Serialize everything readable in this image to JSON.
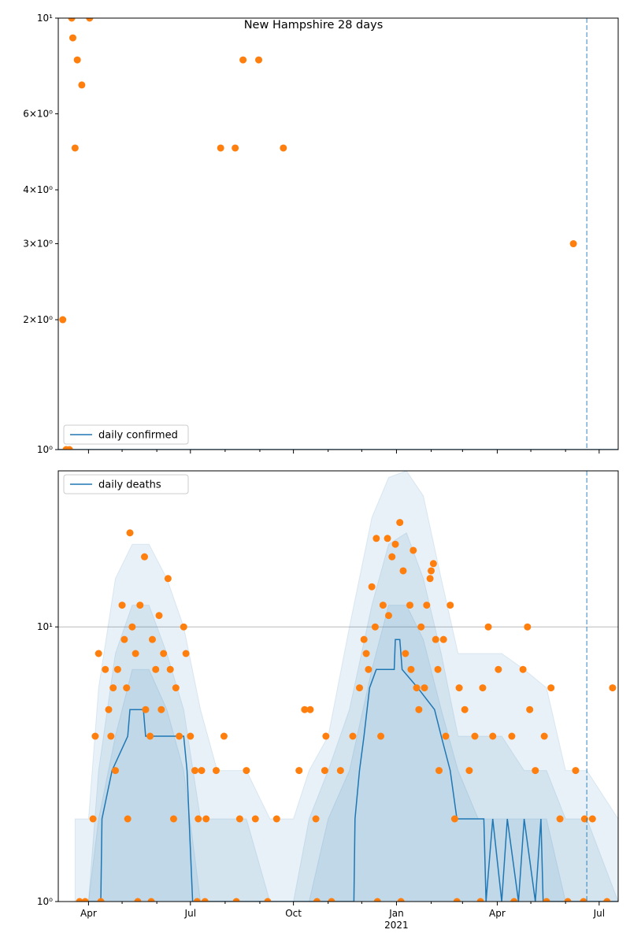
{
  "chart_data": [
    {
      "type": "line",
      "title": "New Hampshire 28 days",
      "log_y": true,
      "grid": false,
      "legend": "lower left",
      "xlim": [
        "2020-03-05",
        "2021-07-18"
      ],
      "ylim": [
        1,
        10
      ],
      "xticks": [
        "2020-04-01",
        "2020-07-01",
        "2020-10-01",
        "2021-01-01",
        "2021-04-01",
        "2021-07-01"
      ],
      "xminor": [
        "2020-05-01",
        "2020-06-01",
        "2020-08-01",
        "2020-09-01",
        "2020-11-01",
        "2020-12-01",
        "2021-02-01",
        "2021-03-01",
        "2021-05-01",
        "2021-06-01"
      ],
      "yticks": [
        {
          "value": 1,
          "label": "10⁰"
        },
        {
          "value": 2,
          "label": "2×10⁰"
        },
        {
          "value": 3,
          "label": "3×10⁰"
        },
        {
          "value": 4,
          "label": "4×10⁰"
        },
        {
          "value": 6,
          "label": "6×10⁰"
        },
        {
          "value": 10,
          "label": "10¹"
        }
      ],
      "vline": "2021-06-20",
      "vline_color": "#1f77b4",
      "series": [
        {
          "name": "daily confirmed",
          "color": "#1f77b4",
          "x": [
            "2020-03-05",
            "2021-07-18"
          ],
          "values": [
            1,
            1
          ]
        }
      ],
      "points": {
        "color": "#ff7f0e",
        "x": [
          "2020-03-09",
          "2020-03-12",
          "2020-03-15",
          "2020-03-17",
          "2020-03-18",
          "2020-03-20",
          "2020-03-22",
          "2020-03-26",
          "2020-04-02",
          "2020-07-28",
          "2020-08-10",
          "2020-08-17",
          "2020-08-31",
          "2020-09-22",
          "2021-06-08"
        ],
        "values": [
          2,
          1,
          1,
          10,
          9,
          5,
          8,
          7,
          10,
          5,
          5,
          8,
          8,
          5,
          3
        ]
      }
    },
    {
      "type": "line",
      "log_y": true,
      "grid": true,
      "legend": "upper left",
      "xlim": [
        "2020-03-05",
        "2021-07-18"
      ],
      "ylim": [
        1,
        37
      ],
      "xticks": [
        {
          "value": "2020-04-01",
          "label": "Apr"
        },
        {
          "value": "2020-07-01",
          "label": "Jul"
        },
        {
          "value": "2020-10-01",
          "label": "Oct"
        },
        {
          "value": "2021-01-01",
          "label": "Jan",
          "sublabel": "2021"
        },
        {
          "value": "2021-04-01",
          "label": "Apr"
        },
        {
          "value": "2021-07-01",
          "label": "Jul"
        }
      ],
      "xminor": [
        "2020-05-01",
        "2020-06-01",
        "2020-08-01",
        "2020-09-01",
        "2020-11-01",
        "2020-12-01",
        "2021-02-01",
        "2021-03-01",
        "2021-05-01",
        "2021-06-01"
      ],
      "yticks": [
        {
          "value": 1,
          "label": "10⁰"
        },
        {
          "value": 10,
          "label": "10¹"
        }
      ],
      "vline": "2021-06-20",
      "vline_color": "#1f77b4",
      "band_color": "#1f77b4",
      "bands": [
        {
          "x": [
            "2020-03-20",
            "2020-04-01",
            "2020-04-10",
            "2020-04-25",
            "2020-05-10",
            "2020-05-25",
            "2020-06-10",
            "2020-06-25",
            "2020-07-10",
            "2020-07-25",
            "2020-08-20",
            "2020-09-10",
            "2020-10-01",
            "2020-10-15",
            "2020-11-01",
            "2020-11-20",
            "2020-12-10",
            "2020-12-25",
            "2021-01-10",
            "2021-01-25",
            "2021-02-10",
            "2021-02-25",
            "2021-03-15",
            "2021-04-05",
            "2021-04-25",
            "2021-05-15",
            "2021-06-01",
            "2021-06-20",
            "2021-07-18"
          ],
          "upper": [
            2,
            2,
            6,
            15,
            20,
            20,
            15,
            10,
            5,
            3,
            3,
            2,
            2,
            3,
            4,
            10,
            25,
            35,
            37,
            30,
            15,
            8,
            8,
            8,
            7,
            6,
            3,
            3,
            2
          ]
        },
        {
          "x": [
            "2020-03-20",
            "2020-04-01",
            "2020-04-10",
            "2020-04-25",
            "2020-05-10",
            "2020-05-25",
            "2020-06-10",
            "2020-06-25",
            "2020-07-10",
            "2020-07-25",
            "2020-08-20",
            "2020-09-10",
            "2020-10-01",
            "2020-10-15",
            "2020-11-01",
            "2020-11-20",
            "2020-12-10",
            "2020-12-25",
            "2021-01-10",
            "2021-01-25",
            "2021-02-10",
            "2021-02-25",
            "2021-03-15",
            "2021-04-05",
            "2021-04-25",
            "2021-05-15",
            "2021-06-01",
            "2021-06-20",
            "2021-07-18"
          ],
          "upper": [
            1,
            1,
            3,
            8,
            12,
            12,
            8,
            5,
            2,
            2,
            2,
            1,
            1,
            2,
            3,
            5,
            12,
            20,
            22,
            15,
            8,
            4,
            4,
            4,
            3,
            3,
            2,
            2,
            1
          ]
        },
        {
          "x": [
            "2020-03-20",
            "2020-04-01",
            "2020-04-10",
            "2020-04-25",
            "2020-05-10",
            "2020-05-25",
            "2020-06-10",
            "2020-06-25",
            "2020-07-10",
            "2020-07-25",
            "2020-08-20",
            "2020-09-10",
            "2020-10-01",
            "2020-10-15",
            "2020-11-01",
            "2020-11-20",
            "2020-12-10",
            "2020-12-25",
            "2021-01-10",
            "2021-01-25",
            "2021-02-10",
            "2021-02-25",
            "2021-03-15",
            "2021-04-05",
            "2021-04-25",
            "2021-05-15",
            "2021-06-01",
            "2021-06-20",
            "2021-07-18"
          ],
          "upper": [
            1,
            1,
            2,
            4,
            7,
            7,
            5,
            3,
            1,
            1,
            1,
            1,
            1,
            1,
            2,
            3,
            7,
            12,
            12,
            9,
            5,
            3,
            2,
            2,
            2,
            2,
            1,
            1,
            1
          ]
        }
      ],
      "series": [
        {
          "name": "daily deaths",
          "color": "#1f77b4",
          "x": [
            "2020-03-24",
            "2020-04-12",
            "2020-04-13",
            "2020-04-22",
            "2020-05-06",
            "2020-05-08",
            "2020-05-20",
            "2020-05-22",
            "2020-06-25",
            "2020-06-28",
            "2020-07-03",
            "2020-11-24",
            "2020-11-25",
            "2020-11-29",
            "2020-12-03",
            "2020-12-08",
            "2020-12-14",
            "2020-12-30",
            "2020-12-31",
            "2021-01-04",
            "2021-01-06",
            "2021-01-20",
            "2021-02-04",
            "2021-02-10",
            "2021-02-18",
            "2021-02-24",
            "2021-03-20",
            "2021-03-22",
            "2021-03-28",
            "2021-04-05",
            "2021-04-10",
            "2021-04-20",
            "2021-04-25",
            "2021-05-05",
            "2021-05-10",
            "2021-05-12",
            "2021-07-18"
          ],
          "values": [
            1,
            1,
            2,
            3,
            4,
            5,
            5,
            4,
            4,
            3,
            1,
            1,
            2,
            3,
            4,
            6,
            7,
            7,
            9,
            9,
            7,
            6,
            5,
            4,
            3,
            2,
            2,
            1,
            2,
            1,
            2,
            1,
            2,
            1,
            2,
            1,
            1
          ]
        }
      ],
      "points": {
        "color": "#ff7f0e",
        "x": [
          "2020-03-24",
          "2020-03-29",
          "2020-04-05",
          "2020-04-07",
          "2020-04-10",
          "2020-04-12",
          "2020-04-16",
          "2020-04-19",
          "2020-04-21",
          "2020-04-23",
          "2020-04-25",
          "2020-04-27",
          "2020-05-01",
          "2020-05-03",
          "2020-05-05",
          "2020-05-06",
          "2020-05-08",
          "2020-05-10",
          "2020-05-13",
          "2020-05-15",
          "2020-05-17",
          "2020-05-21",
          "2020-05-22",
          "2020-05-26",
          "2020-05-27",
          "2020-05-28",
          "2020-05-31",
          "2020-06-03",
          "2020-06-05",
          "2020-06-07",
          "2020-06-11",
          "2020-06-13",
          "2020-06-16",
          "2020-06-18",
          "2020-06-21",
          "2020-06-25",
          "2020-06-27",
          "2020-07-01",
          "2020-07-05",
          "2020-07-07",
          "2020-07-08",
          "2020-07-11",
          "2020-07-14",
          "2020-07-15",
          "2020-07-24",
          "2020-07-31",
          "2020-08-11",
          "2020-08-14",
          "2020-08-20",
          "2020-08-28",
          "2020-09-08",
          "2020-09-16",
          "2020-10-06",
          "2020-10-11",
          "2020-10-16",
          "2020-10-21",
          "2020-10-22",
          "2020-10-29",
          "2020-10-30",
          "2020-11-04",
          "2020-11-12",
          "2020-11-23",
          "2020-11-29",
          "2020-12-03",
          "2020-12-05",
          "2020-12-07",
          "2020-12-10",
          "2020-12-13",
          "2020-12-14",
          "2020-12-15",
          "2020-12-18",
          "2020-12-20",
          "2020-12-24",
          "2020-12-25",
          "2020-12-28",
          "2020-12-31",
          "2021-01-04",
          "2021-01-05",
          "2021-01-07",
          "2021-01-09",
          "2021-01-13",
          "2021-01-14",
          "2021-01-16",
          "2021-01-19",
          "2021-01-21",
          "2021-01-23",
          "2021-01-26",
          "2021-01-28",
          "2021-01-31",
          "2021-02-01",
          "2021-02-03",
          "2021-02-05",
          "2021-02-07",
          "2021-02-08",
          "2021-02-12",
          "2021-02-14",
          "2021-02-18",
          "2021-02-22",
          "2021-02-24",
          "2021-02-26",
          "2021-03-03",
          "2021-03-07",
          "2021-03-12",
          "2021-03-17",
          "2021-03-19",
          "2021-03-24",
          "2021-03-28",
          "2021-04-02",
          "2021-04-14",
          "2021-04-16",
          "2021-04-24",
          "2021-04-28",
          "2021-04-30",
          "2021-05-05",
          "2021-05-13",
          "2021-05-15",
          "2021-05-19",
          "2021-05-27",
          "2021-06-03",
          "2021-06-10",
          "2021-06-17",
          "2021-06-18",
          "2021-06-25",
          "2021-07-08",
          "2021-07-13"
        ],
        "values": [
          1,
          1,
          2,
          4,
          8,
          1,
          7,
          5,
          4,
          6,
          3,
          7,
          12,
          9,
          6,
          2,
          22,
          10,
          8,
          1,
          12,
          18,
          5,
          4,
          1,
          9,
          7,
          11,
          5,
          8,
          15,
          7,
          2,
          6,
          4,
          10,
          8,
          4,
          3,
          1,
          2,
          3,
          1,
          2,
          3,
          4,
          1,
          2,
          3,
          2,
          1,
          2,
          3,
          5,
          5,
          2,
          1,
          3,
          4,
          1,
          3,
          4,
          6,
          9,
          8,
          7,
          14,
          10,
          21,
          1,
          4,
          12,
          21,
          11,
          18,
          20,
          24,
          1,
          16,
          8,
          12,
          7,
          19,
          6,
          5,
          10,
          6,
          12,
          15,
          16,
          17,
          9,
          7,
          3,
          9,
          4,
          12,
          2,
          1,
          6,
          5,
          3,
          4,
          1,
          6,
          10,
          4,
          7,
          4,
          1,
          7,
          10,
          5,
          3,
          4,
          1,
          6,
          2,
          1,
          3,
          1,
          2,
          2,
          1,
          6
        ]
      }
    }
  ]
}
